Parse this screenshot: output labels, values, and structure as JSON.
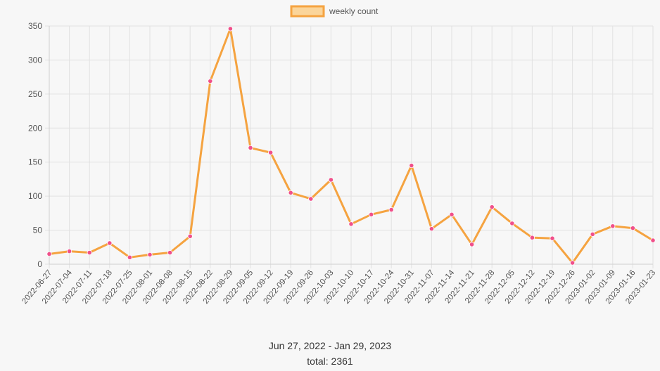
{
  "chart_data": {
    "type": "line",
    "legend": {
      "label": "weekly count",
      "position": "top"
    },
    "x": [
      "2022-06-27",
      "2022-07-04",
      "2022-07-11",
      "2022-07-18",
      "2022-07-25",
      "2022-08-01",
      "2022-08-08",
      "2022-08-15",
      "2022-08-22",
      "2022-08-29",
      "2022-09-05",
      "2022-09-12",
      "2022-09-19",
      "2022-09-26",
      "2022-10-03",
      "2022-10-10",
      "2022-10-17",
      "2022-10-24",
      "2022-10-31",
      "2022-11-07",
      "2022-11-14",
      "2022-11-21",
      "2022-11-28",
      "2022-12-05",
      "2022-12-12",
      "2022-12-19",
      "2022-12-26",
      "2023-01-02",
      "2023-01-09",
      "2023-01-16",
      "2023-01-23"
    ],
    "series": [
      {
        "name": "weekly count",
        "values": [
          15,
          19,
          17,
          31,
          10,
          14,
          17,
          41,
          269,
          346,
          171,
          164,
          105,
          96,
          124,
          59,
          73,
          80,
          145,
          52,
          73,
          29,
          84,
          60,
          39,
          38,
          2,
          44,
          56,
          53,
          35
        ]
      }
    ],
    "ylim": [
      0,
      350
    ],
    "y_ticks": [
      0,
      50,
      100,
      150,
      200,
      250,
      300,
      350
    ],
    "grid": true,
    "colors": {
      "line": "#f5a340",
      "point": "#f0508a",
      "legend_fill": "#fbd59a",
      "grid": "#e2e2e2"
    }
  },
  "footer": {
    "date_range": "Jun 27, 2022 - Jan 29, 2023",
    "total": "total: 2361"
  }
}
